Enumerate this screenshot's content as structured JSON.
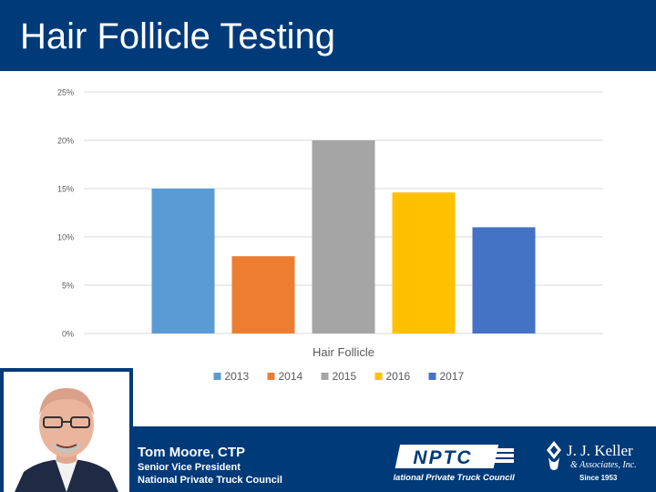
{
  "header": {
    "title": "Hair Follicle Testing"
  },
  "presenter": {
    "name": "Tom Moore, CTP",
    "role": "Senior Vice President",
    "organization": "National Private Truck Council"
  },
  "logos": {
    "nptc": {
      "mark": "NPTC",
      "tagline": "National Private Truck Council"
    },
    "jjkeller": {
      "name": "J. J. Keller",
      "sub": "& Associates, Inc.",
      "since": "Since 1953"
    }
  },
  "colors": {
    "header_bg": "#003a78",
    "footer_bg": "#003a78",
    "grid": "#d9d9d9",
    "axis_text": "#595959"
  },
  "chart_data": {
    "type": "bar",
    "title": "",
    "xlabel": "",
    "ylabel": "",
    "categories": [
      "Hair Follicle"
    ],
    "category_label": "Hair Follicle",
    "y_ticks": [
      "0%",
      "5%",
      "10%",
      "15%",
      "20%",
      "25%"
    ],
    "ylim": [
      0,
      25
    ],
    "grid": true,
    "legend_position": "bottom",
    "series": [
      {
        "name": "2013",
        "values": [
          15
        ],
        "color": "#5b9bd5"
      },
      {
        "name": "2014",
        "values": [
          8
        ],
        "color": "#ed7d31"
      },
      {
        "name": "2015",
        "values": [
          20
        ],
        "color": "#a5a5a5"
      },
      {
        "name": "2016",
        "values": [
          14.6
        ],
        "color": "#ffc000"
      },
      {
        "name": "2017",
        "values": [
          11
        ],
        "color": "#4472c4"
      }
    ]
  }
}
